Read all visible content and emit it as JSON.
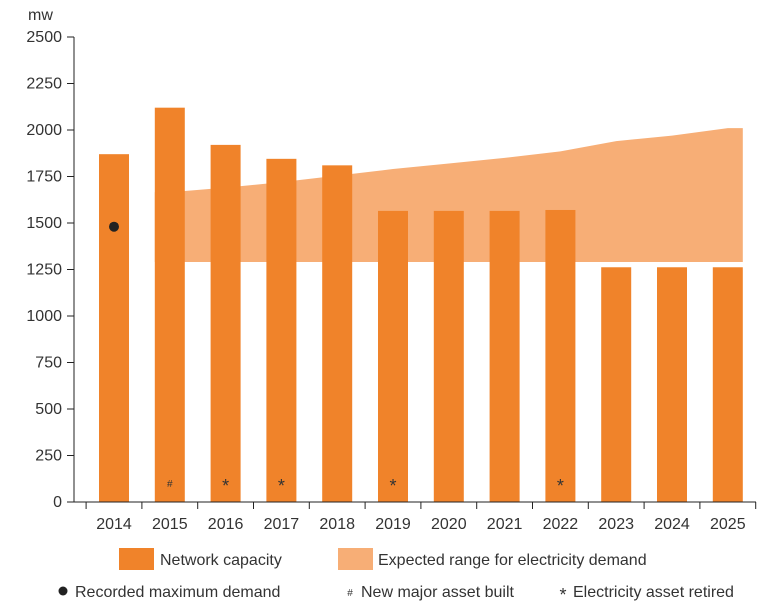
{
  "chart_data": {
    "type": "bar",
    "ylabel": "mw",
    "ylim": [
      0,
      2500
    ],
    "yticks": [
      0,
      250,
      500,
      750,
      1000,
      1250,
      1500,
      1750,
      2000,
      2250,
      2500
    ],
    "categories": [
      "2014",
      "2015",
      "2016",
      "2017",
      "2018",
      "2019",
      "2020",
      "2021",
      "2022",
      "2023",
      "2024",
      "2025"
    ],
    "series": [
      {
        "name": "Network capacity",
        "color": "#f0832a",
        "values": [
          1870,
          2120,
          1920,
          1845,
          1810,
          1565,
          1565,
          1565,
          1570,
          1262,
          1262,
          1262
        ]
      }
    ],
    "range_band": {
      "name": "Expected range for electricity demand",
      "color": "#f7ae76",
      "x": [
        "2015",
        "2016",
        "2017",
        "2018",
        "2019",
        "2020",
        "2021",
        "2022",
        "2023",
        "2024",
        "2025"
      ],
      "low": [
        1290,
        1290,
        1290,
        1290,
        1290,
        1290,
        1290,
        1290,
        1290,
        1290,
        1290
      ],
      "high": [
        1665,
        1690,
        1720,
        1755,
        1790,
        1820,
        1850,
        1885,
        1940,
        1970,
        2010
      ]
    },
    "points": [
      {
        "name": "Recorded maximum demand",
        "x": "2014",
        "y": 1480
      }
    ],
    "markers": [
      {
        "category": "2015",
        "symbol": "#"
      },
      {
        "category": "2016",
        "symbol": "*"
      },
      {
        "category": "2017",
        "symbol": "*"
      },
      {
        "category": "2019",
        "symbol": "*"
      },
      {
        "category": "2022",
        "symbol": "*"
      }
    ],
    "legend": {
      "placement": "bottom",
      "row1": [
        {
          "label": "Network capacity",
          "color": "#f0832a"
        },
        {
          "label": "Expected range for electricity demand",
          "color": "#f7ae76"
        }
      ],
      "row2": [
        {
          "symbol": "●",
          "label": "Recorded maximum demand"
        },
        {
          "symbol": "#",
          "label": "New major asset built"
        },
        {
          "symbol": "*",
          "label": "Electricity asset retired"
        }
      ]
    },
    "grid": false
  }
}
